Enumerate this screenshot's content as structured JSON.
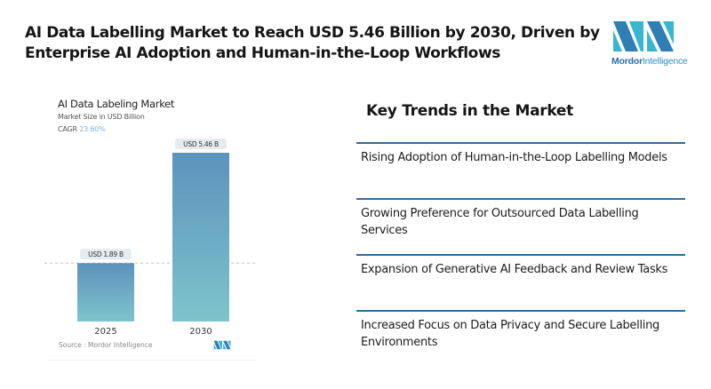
{
  "headline": "AI Data Labelling Market to Reach USD 5.46 Billion by 2030, Driven by Enterprise AI Adoption and Human-in-the-Loop Workflows",
  "brand": {
    "name_bold": "Mordor",
    "name_light": "Intelligence",
    "colors": {
      "dark": "#2f7fb5",
      "light": "#39b6cf"
    }
  },
  "chart_card": {
    "title": "AI Data Labeling Market",
    "subtitle": "Market Size in USD Billion",
    "cagr_label": "CAGR",
    "cagr_value": "23.60%",
    "source": "Source :  Mordor Intelligence"
  },
  "chart_data": {
    "type": "bar",
    "title": "AI Data Labeling Market",
    "subtitle": "Market Size in USD Billion",
    "categories": [
      "2025",
      "2030"
    ],
    "values": [
      1.89,
      5.46
    ],
    "data_labels": [
      "USD 1.89 B",
      "USD 5.46 B"
    ],
    "xlabel": "",
    "ylabel": "Market Size in USD Billion",
    "ylim": [
      0,
      5.46
    ],
    "grid": false,
    "reference_line": {
      "value": 1.89,
      "style": "dashed"
    },
    "cagr": "23.60%",
    "colors": {
      "bar_top": "#5b93bd",
      "bar_bottom": "#7ec4cb",
      "label_bg": "#e6ebee"
    }
  },
  "trends": {
    "title": "Key Trends in the Market",
    "items": [
      "Rising Adoption of Human-in-the-Loop Labelling Models",
      "Growing Preference for Outsourced Data Labelling Services",
      "Expansion of Generative AI Feedback and Review Tasks",
      "Increased Focus on Data Privacy and Secure Labelling Environments"
    ],
    "rule_color": "#2f6e93"
  }
}
